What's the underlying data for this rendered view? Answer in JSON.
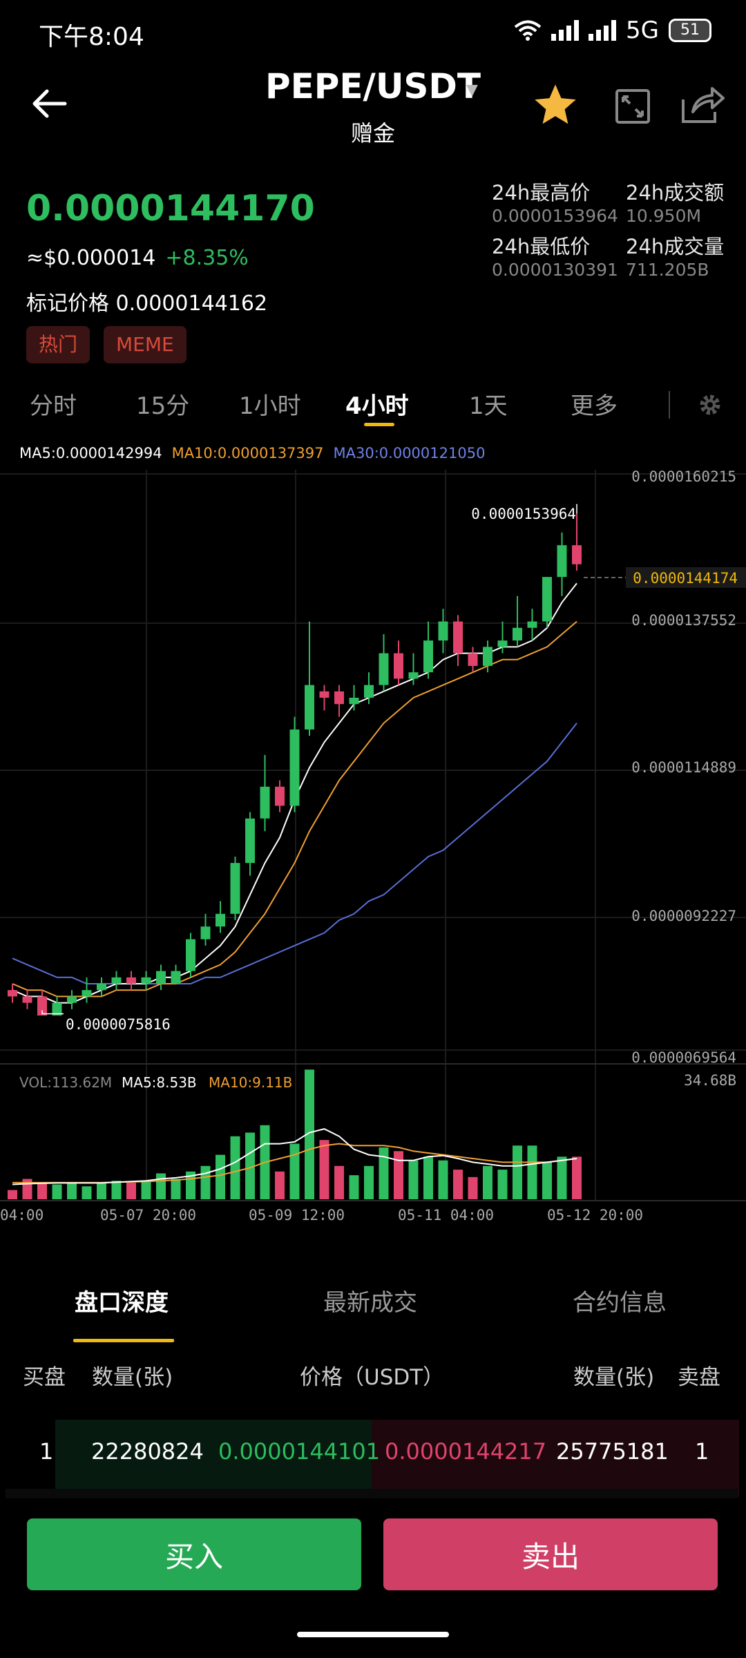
{
  "status": {
    "time": "下午8:04",
    "network": "5G",
    "battery": "51"
  },
  "header": {
    "pair": "PEPE/USDT",
    "subtitle": "赠金"
  },
  "price": {
    "last": "0.0000144170",
    "usd": "≈$0.000014",
    "change": "+8.35%",
    "mark_label": "标记价格",
    "mark_value": "0.0000144162",
    "tags": [
      "热门",
      "MEME"
    ]
  },
  "stats": {
    "high_label": "24h最高价",
    "high_value": "0.0000153964",
    "turnover_label": "24h成交额",
    "turnover_value": "10.950M",
    "low_label": "24h最低价",
    "low_value": "0.0000130391",
    "volume_label": "24h成交量",
    "volume_value": "711.205B"
  },
  "intervals": [
    "分时",
    "15分",
    "1小时",
    "4小时",
    "1天",
    "更多"
  ],
  "active_interval": "4小时",
  "ma_legend": {
    "ma5": "MA5:0.0000142994",
    "ma10": "MA10:0.0000137397",
    "ma30": "MA30:0.0000121050"
  },
  "chart": {
    "y_labels": [
      "0.0000160215",
      "0.0000137552",
      "0.0000114889",
      "0.0000092227",
      "0.0000069564"
    ],
    "current_price_label": "0.0000144174",
    "high_annotation": "0.0000153964",
    "low_annotation": "0.0000075816",
    "vol_legend": {
      "vol": "VOL:113.62M",
      "ma5": "MA5:8.53B",
      "ma10": "MA10:9.11B"
    },
    "vol_max_label": "34.68B",
    "x_labels": [
      "04:00",
      "05-07 20:00",
      "05-09 12:00",
      "05-11 04:00",
      "05-12 20:00"
    ]
  },
  "colors": {
    "up": "#2ebd5f",
    "down": "#e0446c",
    "ma5": "#ffffff",
    "ma10": "#f0a030",
    "ma30": "#5a6fd8",
    "accent": "#f0b90b"
  },
  "bottom_tabs": [
    "盘口深度",
    "最新成交",
    "合约信息"
  ],
  "orderbook": {
    "headers": {
      "bid": "买盘",
      "qty_left": "数量(张)",
      "price": "价格（USDT）",
      "qty_right": "数量(张)",
      "ask": "卖盘"
    },
    "rows": [
      {
        "bid_index": "1",
        "bid_qty": "22280824",
        "bid_price": "0.0000144101",
        "ask_price": "0.0000144217",
        "ask_qty": "25775181",
        "ask_index": "1"
      }
    ]
  },
  "actions": {
    "buy": "买入",
    "sell": "卖出"
  },
  "chart_data": {
    "type": "candlestick",
    "price_axis_range": [
      6.9564e-06,
      1.60215e-05
    ],
    "high": 1.53964e-05,
    "low": 7.5816e-06,
    "last": 1.44174e-05,
    "candles": [
      {
        "o": 7.9e-06,
        "c": 7.8e-06,
        "h": 8e-06,
        "l": 7.7e-06
      },
      {
        "o": 7.8e-06,
        "c": 7.7e-06,
        "h": 7.9e-06,
        "l": 7.6e-06
      },
      {
        "o": 7.8e-06,
        "c": 7.5e-06,
        "h": 7.9e-06,
        "l": 7.5e-06
      },
      {
        "o": 7.5e-06,
        "c": 7.7e-06,
        "h": 7.8e-06,
        "l": 7.5e-06
      },
      {
        "o": 7.7e-06,
        "c": 7.8e-06,
        "h": 7.9e-06,
        "l": 7.6e-06
      },
      {
        "o": 7.8e-06,
        "c": 7.9e-06,
        "h": 8.1e-06,
        "l": 7.7e-06
      },
      {
        "o": 7.9e-06,
        "c": 8e-06,
        "h": 8.1e-06,
        "l": 7.8e-06
      },
      {
        "o": 8e-06,
        "c": 8.1e-06,
        "h": 8.2e-06,
        "l": 7.9e-06
      },
      {
        "o": 8.1e-06,
        "c": 8e-06,
        "h": 8.2e-06,
        "l": 7.9e-06
      },
      {
        "o": 8e-06,
        "c": 8.1e-06,
        "h": 8.2e-06,
        "l": 7.9e-06
      },
      {
        "o": 8e-06,
        "c": 8.2e-06,
        "h": 8.3e-06,
        "l": 7.9e-06
      },
      {
        "o": 8e-06,
        "c": 8.2e-06,
        "h": 8.3e-06,
        "l": 8e-06
      },
      {
        "o": 8.2e-06,
        "c": 8.7e-06,
        "h": 8.8e-06,
        "l": 8.1e-06
      },
      {
        "o": 8.7e-06,
        "c": 8.9e-06,
        "h": 9.1e-06,
        "l": 8.6e-06
      },
      {
        "o": 8.9e-06,
        "c": 9.1e-06,
        "h": 9.3e-06,
        "l": 8.8e-06
      },
      {
        "o": 9.1e-06,
        "c": 9.9e-06,
        "h": 1e-05,
        "l": 9e-06
      },
      {
        "o": 9.9e-06,
        "c": 1.06e-05,
        "h": 1.07e-05,
        "l": 9.7e-06
      },
      {
        "o": 1.06e-05,
        "c": 1.11e-05,
        "h": 1.16e-05,
        "l": 1.04e-05
      },
      {
        "o": 1.11e-05,
        "c": 1.08e-05,
        "h": 1.12e-05,
        "l": 1.07e-05
      },
      {
        "o": 1.08e-05,
        "c": 1.2e-05,
        "h": 1.22e-05,
        "l": 1.07e-05
      },
      {
        "o": 1.2e-05,
        "c": 1.27e-05,
        "h": 1.37e-05,
        "l": 1.19e-05
      },
      {
        "o": 1.26e-05,
        "c": 1.25e-05,
        "h": 1.27e-05,
        "l": 1.23e-05
      },
      {
        "o": 1.26e-05,
        "c": 1.24e-05,
        "h": 1.27e-05,
        "l": 1.22e-05
      },
      {
        "o": 1.24e-05,
        "c": 1.25e-05,
        "h": 1.27e-05,
        "l": 1.23e-05
      },
      {
        "o": 1.25e-05,
        "c": 1.27e-05,
        "h": 1.29e-05,
        "l": 1.24e-05
      },
      {
        "o": 1.27e-05,
        "c": 1.32e-05,
        "h": 1.35e-05,
        "l": 1.26e-05
      },
      {
        "o": 1.32e-05,
        "c": 1.28e-05,
        "h": 1.34e-05,
        "l": 1.27e-05
      },
      {
        "o": 1.28e-05,
        "c": 1.29e-05,
        "h": 1.32e-05,
        "l": 1.27e-05
      },
      {
        "o": 1.29e-05,
        "c": 1.34e-05,
        "h": 1.37e-05,
        "l": 1.28e-05
      },
      {
        "o": 1.34e-05,
        "c": 1.37e-05,
        "h": 1.39e-05,
        "l": 1.32e-05
      },
      {
        "o": 1.37e-05,
        "c": 1.32e-05,
        "h": 1.38e-05,
        "l": 1.3e-05
      },
      {
        "o": 1.32e-05,
        "c": 1.3e-05,
        "h": 1.33e-05,
        "l": 1.29e-05
      },
      {
        "o": 1.3e-05,
        "c": 1.33e-05,
        "h": 1.34e-05,
        "l": 1.29e-05
      },
      {
        "o": 1.33e-05,
        "c": 1.34e-05,
        "h": 1.37e-05,
        "l": 1.32e-05
      },
      {
        "o": 1.34e-05,
        "c": 1.36e-05,
        "h": 1.41e-05,
        "l": 1.33e-05
      },
      {
        "o": 1.36e-05,
        "c": 1.37e-05,
        "h": 1.39e-05,
        "l": 1.34e-05
      },
      {
        "o": 1.37e-05,
        "c": 1.44e-05,
        "h": 1.44e-05,
        "l": 1.36e-05
      },
      {
        "o": 1.44e-05,
        "c": 1.49e-05,
        "h": 1.51e-05,
        "l": 1.41e-05
      },
      {
        "o": 1.49e-05,
        "c": 1.46e-05,
        "h": 1.53964e-05,
        "l": 1.45e-05
      }
    ],
    "ma5": [
      7.9e-06,
      7.8e-06,
      7.8e-06,
      7.7e-06,
      7.7e-06,
      7.8e-06,
      7.9e-06,
      8e-06,
      8e-06,
      8e-06,
      8.1e-06,
      8.1e-06,
      8.2e-06,
      8.4e-06,
      8.6e-06,
      8.9e-06,
      9.4e-06,
      9.9e-06,
      1.03e-05,
      1.09e-05,
      1.14e-05,
      1.18e-05,
      1.21e-05,
      1.24e-05,
      1.25e-05,
      1.26e-05,
      1.27e-05,
      1.28e-05,
      1.29e-05,
      1.31e-05,
      1.32e-05,
      1.32e-05,
      1.32e-05,
      1.33e-05,
      1.33e-05,
      1.34e-05,
      1.36e-05,
      1.4e-05,
      1.43e-05
    ],
    "ma10": [
      8e-06,
      7.9e-06,
      7.9e-06,
      7.8e-06,
      7.8e-06,
      7.8e-06,
      7.8e-06,
      7.9e-06,
      7.9e-06,
      7.9e-06,
      8e-06,
      8e-06,
      8.1e-06,
      8.2e-06,
      8.3e-06,
      8.5e-06,
      8.8e-06,
      9.1e-06,
      9.5e-06,
      9.9e-06,
      1.04e-05,
      1.08e-05,
      1.12e-05,
      1.15e-05,
      1.18e-05,
      1.21e-05,
      1.23e-05,
      1.25e-05,
      1.26e-05,
      1.27e-05,
      1.28e-05,
      1.29e-05,
      1.3e-05,
      1.31e-05,
      1.31e-05,
      1.32e-05,
      1.33e-05,
      1.35e-05,
      1.37e-05
    ],
    "ma30": [
      8.4e-06,
      8.3e-06,
      8.2e-06,
      8.1e-06,
      8.1e-06,
      8e-06,
      8e-06,
      8e-06,
      8e-06,
      8e-06,
      8e-06,
      8e-06,
      8e-06,
      8.1e-06,
      8.1e-06,
      8.2e-06,
      8.3e-06,
      8.4e-06,
      8.5e-06,
      8.6e-06,
      8.7e-06,
      8.8e-06,
      9e-06,
      9.1e-06,
      9.3e-06,
      9.4e-06,
      9.6e-06,
      9.8e-06,
      1e-05,
      1.01e-05,
      1.03e-05,
      1.05e-05,
      1.07e-05,
      1.09e-05,
      1.11e-05,
      1.13e-05,
      1.15e-05,
      1.18e-05,
      1.21e-05
    ],
    "volume_axis_max_B": 34.68,
    "volume_B": [
      2.5,
      5.5,
      4.5,
      4.0,
      4.5,
      3.5,
      4.5,
      5.0,
      4.5,
      5.0,
      7.0,
      5.5,
      7.5,
      9.0,
      12.0,
      17.0,
      18.0,
      20.0,
      7.5,
      15.0,
      35.0,
      16.0,
      9.0,
      6.5,
      9.0,
      14.0,
      13.0,
      10.5,
      11.5,
      10.5,
      8.0,
      6.0,
      9.0,
      8.0,
      14.5,
      14.5,
      10.0,
      11.5,
      11.5
    ],
    "vol_ma5_B": [
      4.0,
      4.2,
      4.3,
      4.4,
      4.4,
      4.4,
      4.4,
      4.6,
      4.8,
      5.0,
      5.5,
      5.8,
      6.3,
      7.0,
      8.2,
      10.0,
      12.5,
      15.0,
      15.0,
      15.5,
      18.0,
      19.0,
      17.0,
      13.5,
      12.0,
      11.5,
      10.5,
      10.5,
      11.5,
      11.8,
      11.0,
      10.0,
      9.5,
      9.0,
      9.0,
      9.5,
      10.0,
      10.5,
      11.0
    ],
    "vol_ma10_B": [
      4.5,
      4.5,
      4.5,
      4.5,
      4.5,
      4.5,
      4.5,
      4.6,
      4.7,
      4.8,
      5.0,
      5.2,
      5.5,
      6.0,
      6.5,
      7.5,
      8.5,
      10.0,
      11.0,
      12.0,
      13.5,
      14.5,
      15.0,
      14.5,
      14.5,
      14.5,
      14.0,
      13.0,
      12.5,
      12.0,
      11.5,
      11.0,
      10.5,
      10.0,
      10.0,
      10.0,
      10.0,
      10.5,
      11.0
    ]
  }
}
